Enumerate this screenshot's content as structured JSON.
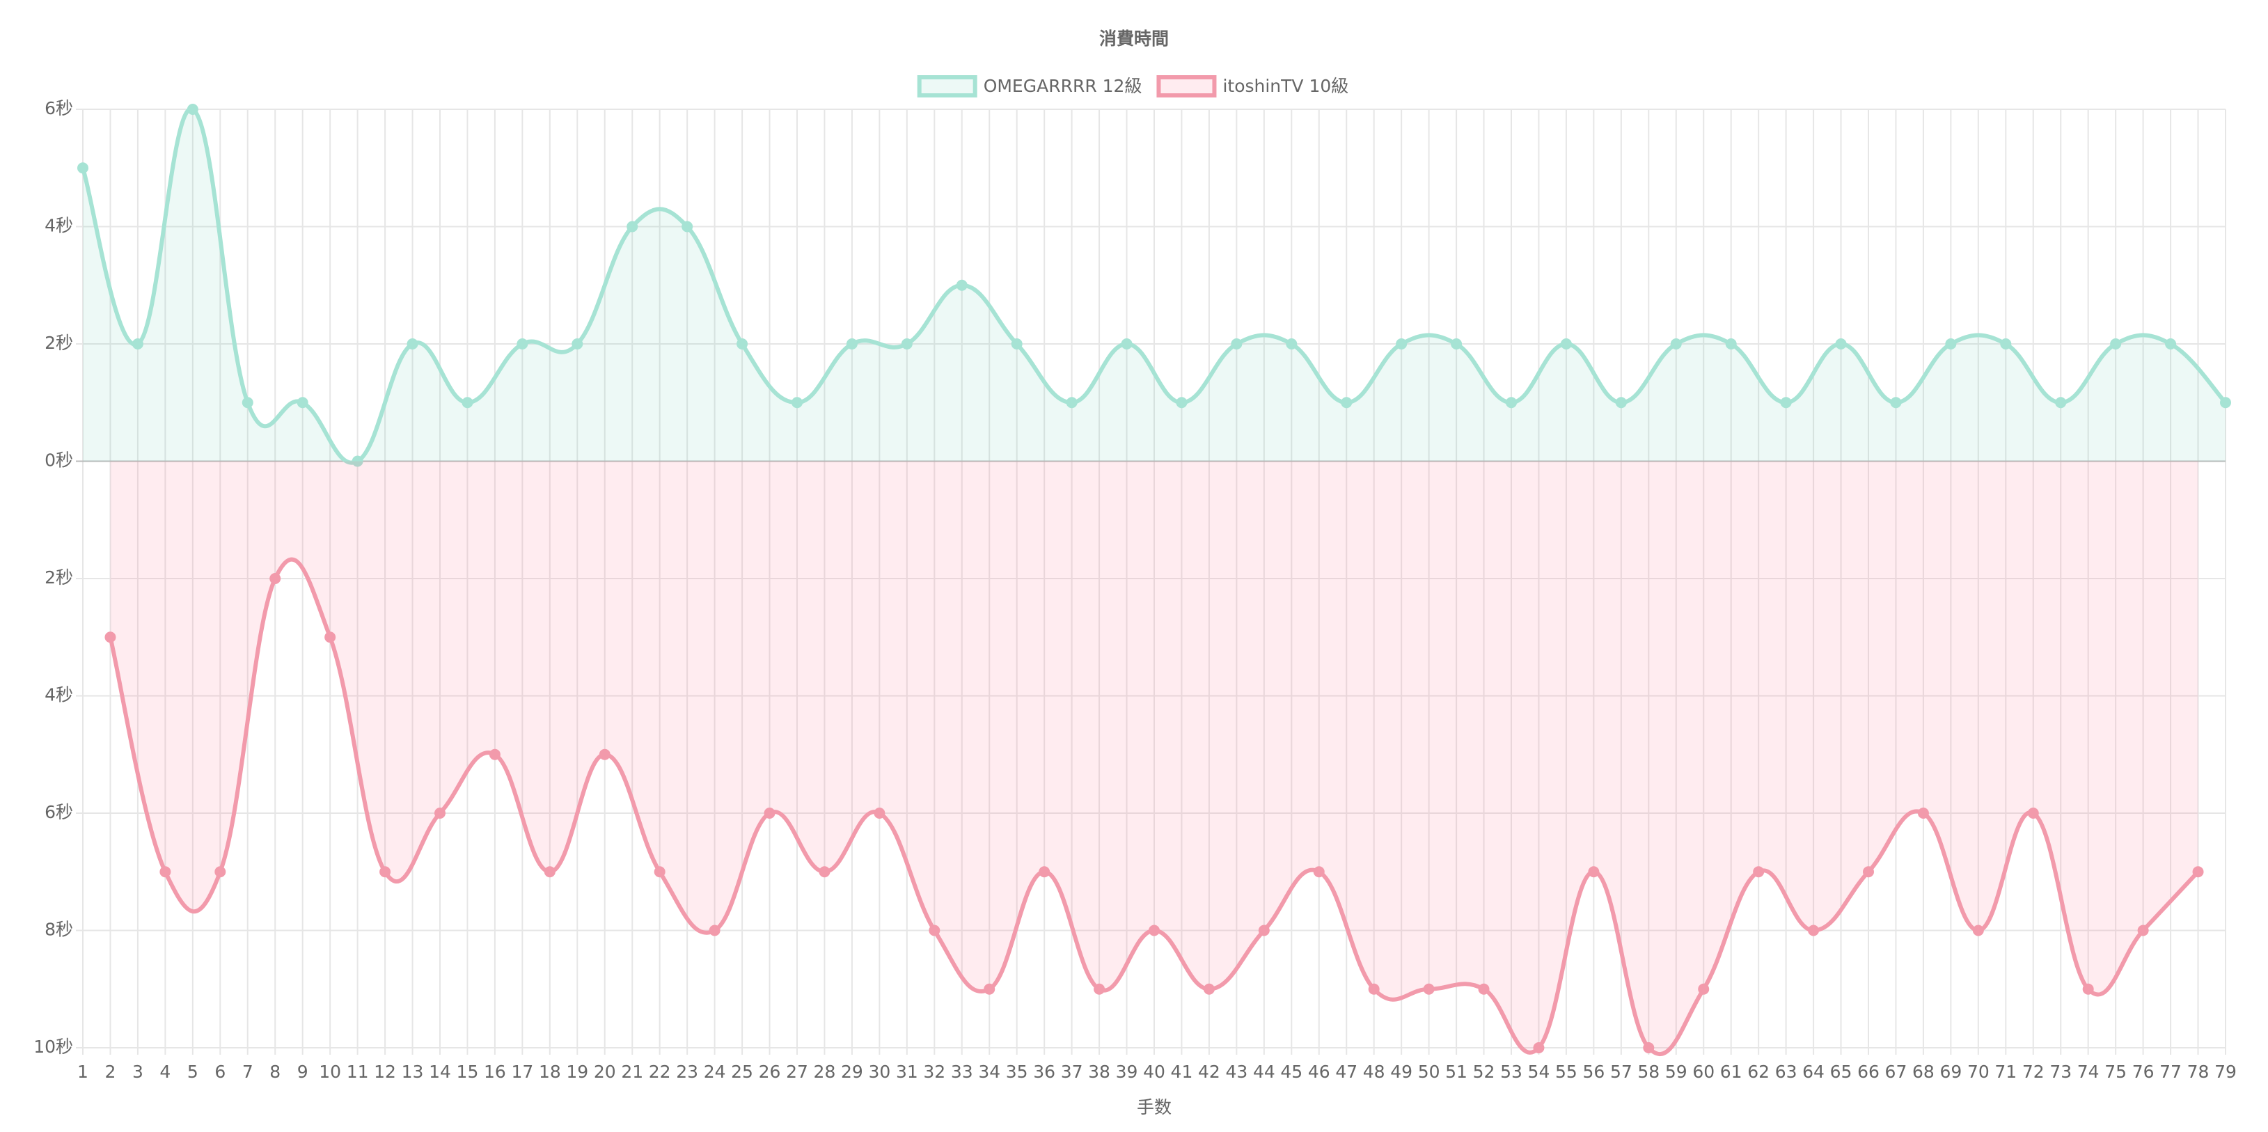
{
  "chart_data": {
    "type": "line",
    "title": "消費時間",
    "x_label": "手数",
    "categories": [
      1,
      2,
      3,
      4,
      5,
      6,
      7,
      8,
      9,
      10,
      11,
      12,
      13,
      14,
      15,
      16,
      17,
      18,
      19,
      20,
      21,
      22,
      23,
      24,
      25,
      26,
      27,
      28,
      29,
      30,
      31,
      32,
      33,
      34,
      35,
      36,
      37,
      38,
      39,
      40,
      41,
      42,
      43,
      44,
      45,
      46,
      47,
      48,
      49,
      50,
      51,
      52,
      53,
      54,
      55,
      56,
      57,
      58,
      59,
      60,
      61,
      62,
      63,
      64,
      65,
      66,
      67,
      68,
      69,
      70,
      71,
      72,
      73,
      74,
      75,
      76,
      77,
      78,
      79
    ],
    "series": [
      {
        "name": "OMEGARRRR 12級",
        "color": "#a6e3d4",
        "fill": "rgba(75,200,170,0.10)",
        "x": [
          1,
          3,
          5,
          7,
          9,
          11,
          13,
          15,
          17,
          19,
          21,
          23,
          25,
          27,
          29,
          31,
          33,
          35,
          37,
          39,
          41,
          43,
          45,
          47,
          49,
          51,
          53,
          55,
          57,
          59,
          61,
          63,
          65,
          67,
          69,
          71,
          73,
          75,
          77,
          79
        ],
        "values": [
          5,
          2,
          6,
          1,
          1,
          0,
          2,
          1,
          2,
          2,
          4,
          4,
          2,
          1,
          2,
          2,
          3,
          2,
          1,
          2,
          1,
          2,
          2,
          1,
          2,
          2,
          1,
          2,
          1,
          2,
          2,
          1,
          2,
          1,
          2,
          2,
          1,
          2,
          2,
          1
        ]
      },
      {
        "name": "itoshinTV 10級",
        "color": "#f29aab",
        "fill": "rgba(255,99,132,0.12)",
        "x": [
          2,
          4,
          6,
          8,
          10,
          12,
          14,
          16,
          18,
          20,
          22,
          24,
          26,
          28,
          30,
          32,
          34,
          36,
          38,
          40,
          42,
          44,
          46,
          48,
          50,
          52,
          54,
          56,
          58,
          60,
          62,
          64,
          66,
          68,
          70,
          72,
          74,
          76,
          78
        ],
        "values": [
          -3,
          -7,
          -7,
          -2,
          -3,
          -7,
          -6,
          -5,
          -7,
          -5,
          -7,
          -8,
          -6,
          -7,
          -6,
          -8,
          -9,
          -7,
          -9,
          -8,
          -9,
          -8,
          -7,
          -9,
          -9,
          -9,
          -10,
          -7,
          -10,
          -9,
          -7,
          -8,
          -7,
          -6,
          -8,
          -6,
          -9,
          -8,
          -7
        ]
      }
    ],
    "ylim": [
      -10,
      6
    ],
    "yticks": [
      {
        "value": 6,
        "label": "6秒"
      },
      {
        "value": 4,
        "label": "4秒"
      },
      {
        "value": 2,
        "label": "2秒"
      },
      {
        "value": 0,
        "label": "0秒"
      },
      {
        "value": -2,
        "label": "2秒"
      },
      {
        "value": -4,
        "label": "4秒"
      },
      {
        "value": -6,
        "label": "6秒"
      },
      {
        "value": -8,
        "label": "8秒"
      },
      {
        "value": -10,
        "label": "10秒"
      }
    ],
    "grid": true,
    "legend": "top"
  }
}
